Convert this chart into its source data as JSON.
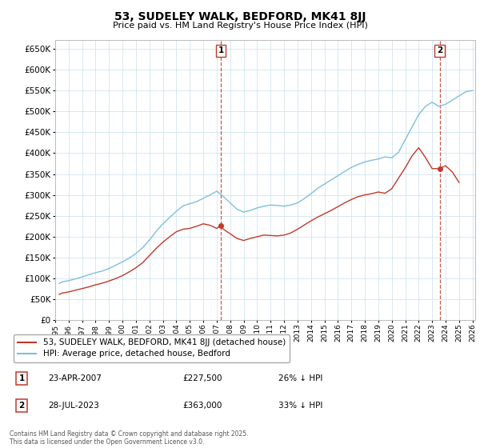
{
  "title": "53, SUDELEY WALK, BEDFORD, MK41 8JJ",
  "subtitle": "Price paid vs. HM Land Registry's House Price Index (HPI)",
  "legend_line1": "53, SUDELEY WALK, BEDFORD, MK41 8JJ (detached house)",
  "legend_line2": "HPI: Average price, detached house, Bedford",
  "annotation1_label": "1",
  "annotation1_date": "23-APR-2007",
  "annotation1_price": "£227,500",
  "annotation1_hpi": "26% ↓ HPI",
  "annotation1_year": 2007.31,
  "annotation1_value": 227500,
  "annotation2_label": "2",
  "annotation2_date": "28-JUL-2023",
  "annotation2_price": "£363,000",
  "annotation2_hpi": "33% ↓ HPI",
  "annotation2_year": 2023.56,
  "annotation2_value": 363000,
  "hpi_color": "#7fbfdf",
  "price_color": "#c0392b",
  "vline_color": "#c0392b",
  "grid_color": "#d0e4f0",
  "ylim": [
    0,
    670000
  ],
  "xlim_start": 1995.3,
  "xlim_end": 2026.2,
  "footer": "Contains HM Land Registry data © Crown copyright and database right 2025.\nThis data is licensed under the Open Government Licence v3.0.",
  "hpi_years": [
    1995.3,
    1995.5,
    1996.0,
    1996.5,
    1997.0,
    1997.5,
    1998.0,
    1998.5,
    1999.0,
    1999.5,
    2000.0,
    2000.5,
    2001.0,
    2001.5,
    2002.0,
    2002.5,
    2003.0,
    2003.5,
    2004.0,
    2004.5,
    2005.0,
    2005.5,
    2006.0,
    2006.5,
    2007.0,
    2007.5,
    2008.0,
    2008.5,
    2009.0,
    2009.5,
    2010.0,
    2010.5,
    2011.0,
    2011.5,
    2012.0,
    2012.5,
    2013.0,
    2013.5,
    2014.0,
    2014.5,
    2015.0,
    2015.5,
    2016.0,
    2016.5,
    2017.0,
    2017.5,
    2018.0,
    2018.5,
    2019.0,
    2019.5,
    2020.0,
    2020.5,
    2021.0,
    2021.5,
    2022.0,
    2022.5,
    2023.0,
    2023.5,
    2024.0,
    2024.5,
    2025.0,
    2025.5,
    2026.0
  ],
  "hpi_values": [
    88000,
    92000,
    95000,
    99000,
    104000,
    109000,
    114000,
    118000,
    124000,
    132000,
    140000,
    149000,
    160000,
    174000,
    192000,
    213000,
    231000,
    246000,
    261000,
    274000,
    279000,
    284000,
    292000,
    300000,
    309000,
    296000,
    281000,
    266000,
    259000,
    263000,
    269000,
    273000,
    276000,
    275000,
    273000,
    276000,
    281000,
    291000,
    303000,
    316000,
    326000,
    336000,
    346000,
    356000,
    366000,
    373000,
    379000,
    383000,
    386000,
    391000,
    389000,
    402000,
    432000,
    462000,
    492000,
    512000,
    522000,
    512000,
    517000,
    527000,
    537000,
    547000,
    550000
  ],
  "price_years": [
    1995.3,
    1995.5,
    1996.0,
    1996.5,
    1997.0,
    1997.5,
    1998.0,
    1998.5,
    1999.0,
    1999.5,
    2000.0,
    2000.5,
    2001.0,
    2001.5,
    2002.0,
    2002.5,
    2003.0,
    2003.5,
    2004.0,
    2004.5,
    2005.0,
    2005.5,
    2006.0,
    2006.5,
    2007.0,
    2007.31,
    2007.5,
    2008.0,
    2008.5,
    2009.0,
    2009.5,
    2010.0,
    2010.5,
    2011.0,
    2011.5,
    2012.0,
    2012.5,
    2013.0,
    2013.5,
    2014.0,
    2014.5,
    2015.0,
    2015.5,
    2016.0,
    2016.5,
    2017.0,
    2017.5,
    2018.0,
    2018.5,
    2019.0,
    2019.5,
    2020.0,
    2020.5,
    2021.0,
    2021.5,
    2022.0,
    2022.5,
    2023.0,
    2023.56,
    2024.0,
    2024.5,
    2025.0
  ],
  "price_values": [
    62000,
    65000,
    68000,
    72000,
    76000,
    80000,
    85000,
    89000,
    94000,
    100000,
    107000,
    116000,
    126000,
    138000,
    155000,
    172000,
    187000,
    200000,
    212000,
    218000,
    220000,
    225000,
    231000,
    227500,
    220000,
    227500,
    218000,
    207000,
    196000,
    191000,
    196000,
    200000,
    204000,
    203000,
    202000,
    204000,
    209000,
    218000,
    228000,
    238000,
    247000,
    255000,
    263000,
    272000,
    281000,
    289000,
    296000,
    300000,
    303000,
    307000,
    304000,
    315000,
    340000,
    365000,
    393000,
    413000,
    390000,
    363000,
    363000,
    370000,
    355000,
    330000
  ]
}
